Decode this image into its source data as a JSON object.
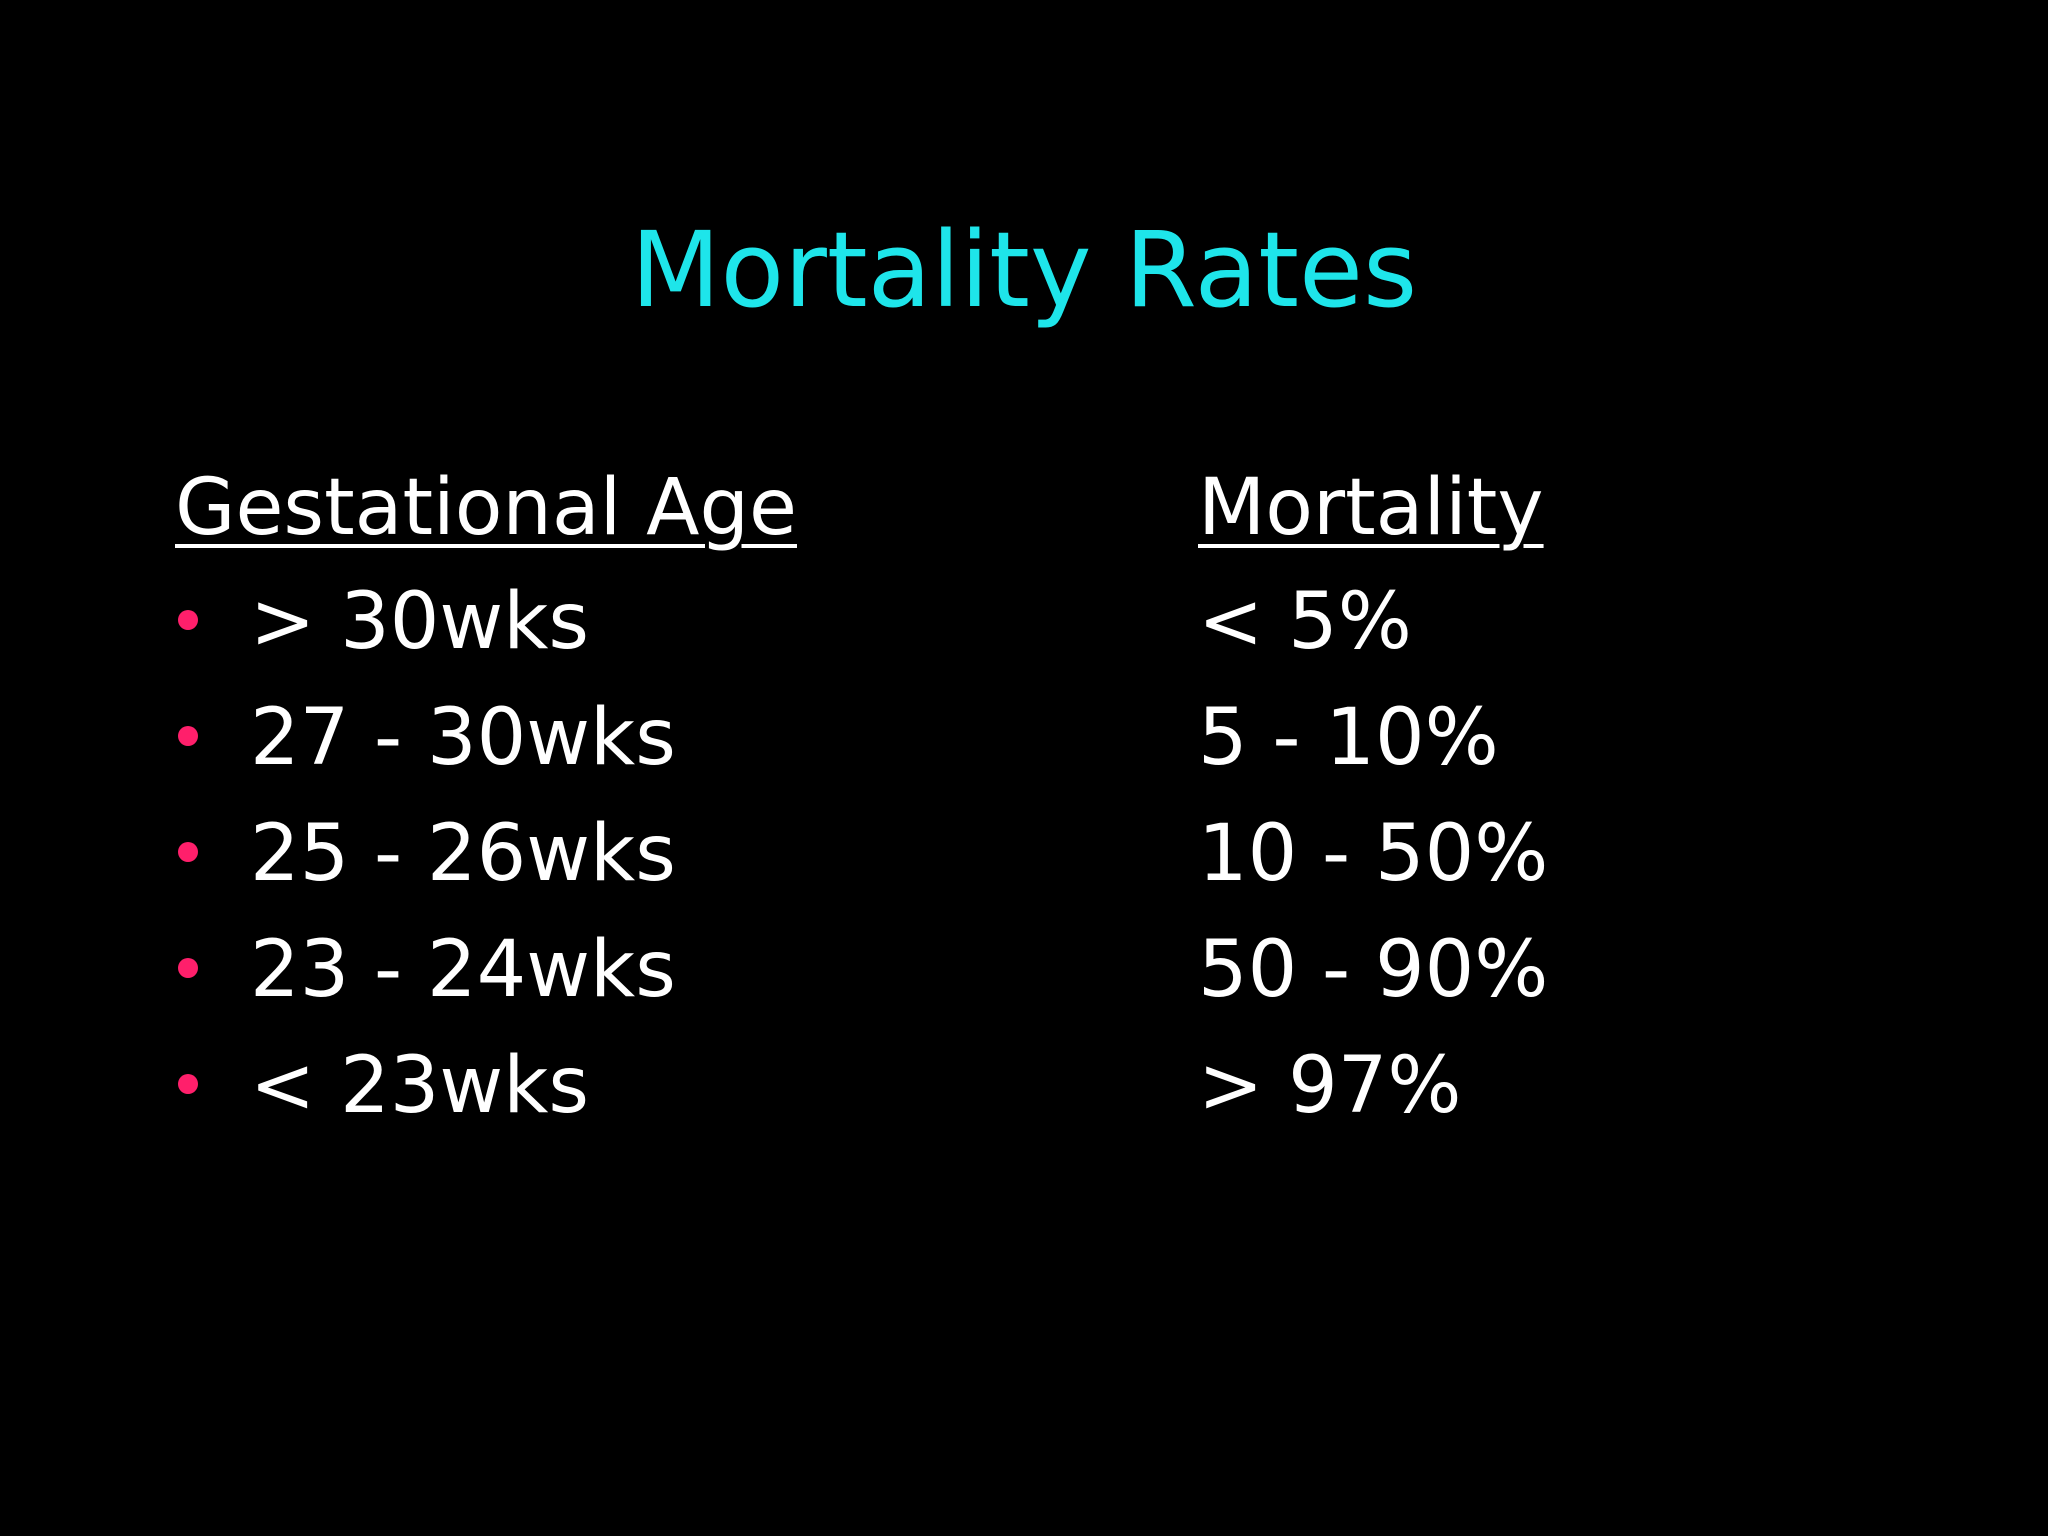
{
  "slide": {
    "title": "Mortality Rates",
    "colors": {
      "background": "#000000",
      "title": "#1ee5ea",
      "text": "#ffffff",
      "bullet": "#ff1f6b"
    },
    "headers": {
      "age": "Gestational Age",
      "mortality": "Mortality"
    },
    "rows": [
      {
        "age": "> 30wks",
        "mortality": "< 5%"
      },
      {
        "age": "27 - 30wks",
        "mortality": "5 - 10%"
      },
      {
        "age": "25 - 26wks",
        "mortality": "10 - 50%"
      },
      {
        "age": "23 - 24wks",
        "mortality": "50 - 90%"
      },
      {
        "age": "< 23wks",
        "mortality": "> 97%"
      }
    ]
  }
}
